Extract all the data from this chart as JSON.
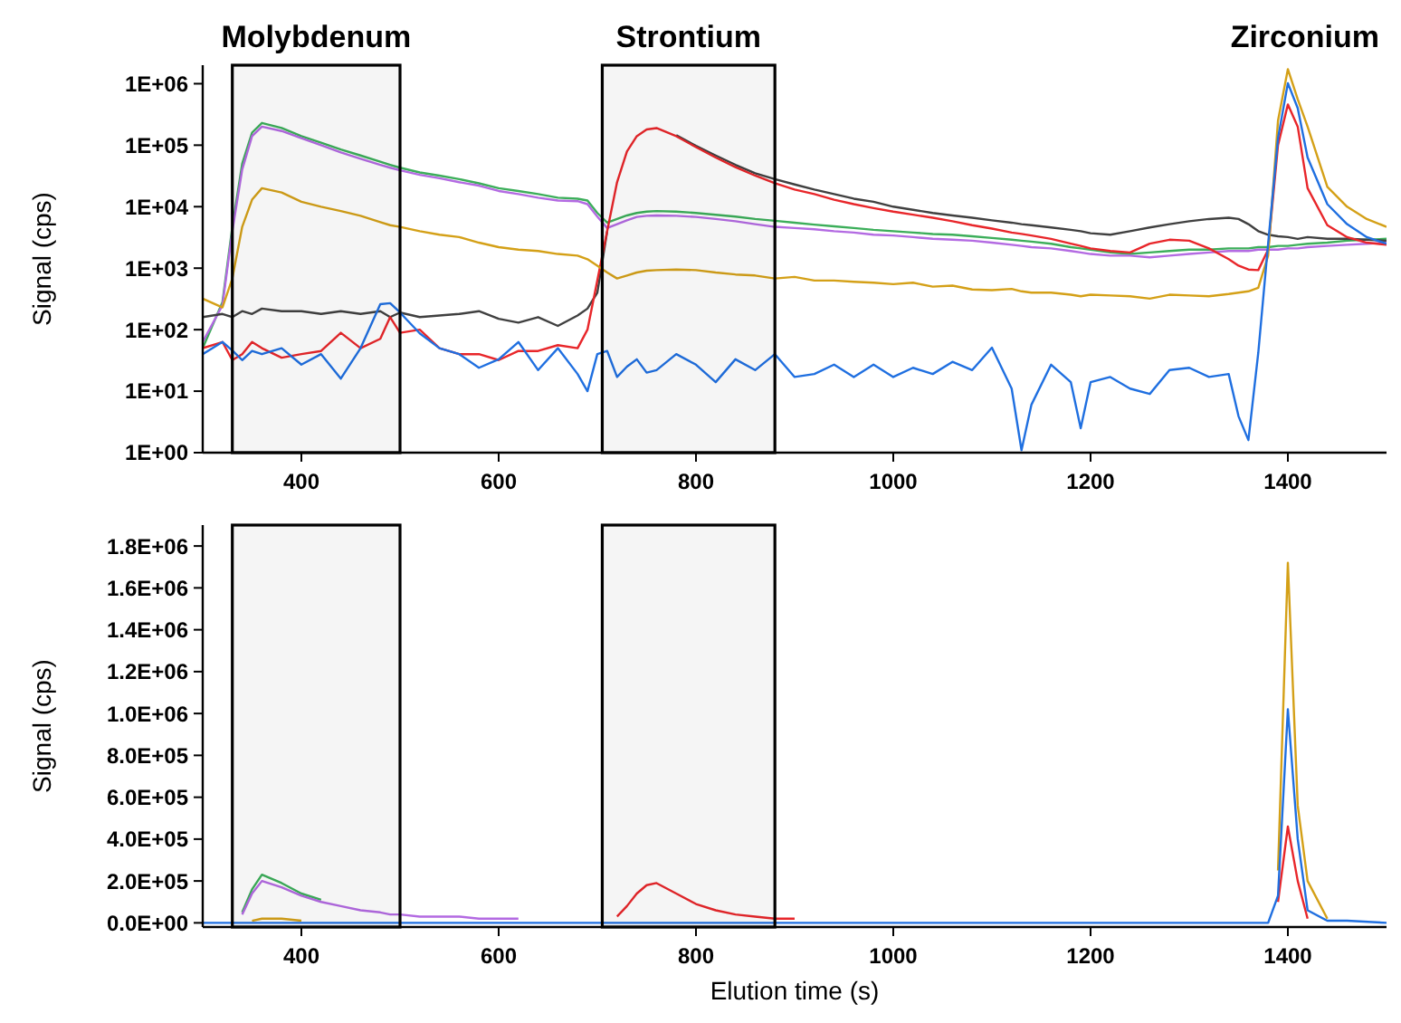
{
  "chart_data": [
    {
      "type": "line",
      "ylabel": "Signal (cps)",
      "log": true,
      "xlim": [
        300,
        1500
      ],
      "xticks": [
        400,
        600,
        800,
        1000,
        1200,
        1400
      ],
      "ylim": [
        1,
        2000000
      ],
      "yticks": [
        {
          "value": 1,
          "label": "1E+00"
        },
        {
          "value": 10,
          "label": "1E+01"
        },
        {
          "value": 100,
          "label": "1E+02"
        },
        {
          "value": 1000,
          "label": "1E+03"
        },
        {
          "value": 10000,
          "label": "1E+04"
        },
        {
          "value": 100000,
          "label": "1E+05"
        },
        {
          "value": 1000000,
          "label": "1E+06"
        }
      ],
      "bands": [
        {
          "axis": "x",
          "from": 330,
          "to": 500,
          "label": "Molybdenum"
        },
        {
          "axis": "x",
          "from": 705,
          "to": 880,
          "label": "Strontium"
        }
      ],
      "annotations": [
        "Zirconium"
      ],
      "x": [
        300,
        320,
        330,
        340,
        350,
        360,
        380,
        400,
        420,
        440,
        460,
        480,
        490,
        500,
        520,
        540,
        560,
        580,
        600,
        620,
        640,
        660,
        680,
        690,
        700,
        710,
        720,
        730,
        740,
        750,
        760,
        780,
        800,
        820,
        840,
        860,
        880,
        900,
        920,
        940,
        960,
        980,
        1000,
        1020,
        1040,
        1060,
        1080,
        1100,
        1120,
        1130,
        1140,
        1160,
        1180,
        1190,
        1200,
        1220,
        1240,
        1260,
        1280,
        1300,
        1320,
        1340,
        1350,
        1360,
        1370,
        1380,
        1390,
        1400,
        1410,
        1420,
        1440,
        1460,
        1480,
        1500
      ],
      "series": [
        {
          "color": "#3cae5a",
          "values": [
            50,
            280,
            4700,
            50000,
            160000,
            230000,
            190000,
            140000,
            110000,
            85000,
            68000,
            54000,
            48000,
            43000,
            36000,
            32000,
            28000,
            24000,
            20000,
            18000,
            16000,
            14000,
            13500,
            12600,
            7900,
            5500,
            6300,
            7200,
            7900,
            8300,
            8500,
            8300,
            7900,
            7400,
            6900,
            6300,
            5900,
            5500,
            5100,
            4800,
            4500,
            4200,
            4000,
            3800,
            3600,
            3500,
            3300,
            3100,
            2900,
            2800,
            2700,
            2500,
            2200,
            2100,
            2000,
            1800,
            1700,
            1800,
            1900,
            2000,
            2000,
            2100,
            2100,
            2100,
            2200,
            2200,
            2300,
            2300,
            2400,
            2500,
            2600,
            2800,
            2900,
            3000
          ]
        },
        {
          "color": "#b36ae2",
          "values": [
            63,
            250,
            4000,
            40000,
            140000,
            200000,
            170000,
            130000,
            100000,
            76000,
            60000,
            48000,
            43000,
            39000,
            33000,
            29000,
            25000,
            22000,
            18000,
            16000,
            14000,
            12600,
            12300,
            11000,
            6900,
            4500,
            5200,
            6000,
            6800,
            7100,
            7200,
            7100,
            6800,
            6300,
            5800,
            5200,
            4700,
            4500,
            4300,
            4000,
            3800,
            3500,
            3400,
            3200,
            3000,
            2900,
            2800,
            2600,
            2400,
            2300,
            2200,
            2100,
            1900,
            1800,
            1700,
            1600,
            1600,
            1500,
            1600,
            1700,
            1800,
            1900,
            1900,
            1900,
            2000,
            2000,
            2000,
            2100,
            2100,
            2200,
            2300,
            2400,
            2500,
            2600
          ]
        },
        {
          "color": "#404040",
          "values": [
            160,
            180,
            160,
            200,
            180,
            220,
            200,
            200,
            180,
            200,
            180,
            200,
            160,
            190,
            160,
            170,
            180,
            200,
            150,
            130,
            160,
            115,
            170,
            220,
            400,
            4000,
            null,
            null,
            null,
            null,
            null,
            145000,
            98000,
            68000,
            48000,
            35000,
            28000,
            23000,
            19000,
            16000,
            13500,
            12000,
            10000,
            8900,
            7900,
            7200,
            6600,
            6000,
            5500,
            5200,
            5000,
            4600,
            4200,
            4000,
            3700,
            3500,
            4000,
            4600,
            5200,
            5800,
            6300,
            6600,
            6300,
            5200,
            4000,
            3500,
            3300,
            3200,
            3000,
            3200,
            3000,
            3000,
            2900,
            2800
          ]
        },
        {
          "color": "#e8262a",
          "values": [
            50,
            63,
            32,
            40,
            63,
            50,
            35,
            40,
            45,
            89,
            50,
            71,
            160,
            89,
            100,
            50,
            40,
            40,
            32,
            45,
            45,
            56,
            50,
            100,
            630,
            4000,
            25000,
            79000,
            140000,
            180000,
            190000,
            140000,
            93000,
            63000,
            44000,
            32000,
            24000,
            19000,
            16000,
            13000,
            11000,
            9500,
            8300,
            7400,
            6600,
            5800,
            5000,
            4400,
            3800,
            3600,
            3400,
            3000,
            2500,
            2300,
            2100,
            1900,
            1800,
            2500,
            2900,
            2800,
            2100,
            1400,
            1100,
            950,
            930,
            2000,
            100000,
            460000,
            200000,
            20000,
            5000,
            3200,
            2600,
            2400
          ]
        },
        {
          "color": "#d4a017",
          "values": [
            320,
            230,
            680,
            4700,
            13000,
            20000,
            17000,
            12000,
            10000,
            8500,
            7100,
            5600,
            5000,
            4700,
            4000,
            3500,
            3200,
            2600,
            2200,
            2000,
            1900,
            1700,
            1600,
            1400,
            1100,
            850,
            680,
            760,
            850,
            910,
            930,
            950,
            930,
            850,
            790,
            760,
            680,
            720,
            630,
            630,
            600,
            580,
            550,
            580,
            500,
            520,
            450,
            440,
            460,
            420,
            400,
            400,
            370,
            350,
            370,
            360,
            350,
            320,
            370,
            360,
            350,
            380,
            400,
            420,
            480,
            1600,
            250000,
            1720000,
            560000,
            200000,
            21000,
            10000,
            6300,
            4700
          ]
        },
        {
          "color": "#1f6fe0",
          "values": [
            40,
            63,
            46,
            32,
            45,
            40,
            50,
            27,
            40,
            16,
            50,
            260,
            270,
            190,
            87,
            50,
            40,
            24,
            33,
            63,
            22,
            50,
            19,
            10,
            40,
            45,
            17,
            25,
            33,
            20,
            22,
            40,
            27,
            14,
            33,
            22,
            40,
            17,
            19,
            27,
            17,
            27,
            17,
            24,
            19,
            30,
            22,
            51,
            11,
            1.1,
            6,
            27,
            14,
            2.5,
            14,
            17,
            11,
            9,
            22,
            24,
            17,
            19,
            3.9,
            1.6,
            42,
            2500,
            130000,
            1020000,
            400000,
            63000,
            11000,
            5200,
            3200,
            2500
          ]
        }
      ]
    },
    {
      "type": "line",
      "xlabel": "Elution time (s)",
      "ylabel": "Signal (cps)",
      "xlim": [
        300,
        1500
      ],
      "xticks": [
        400,
        600,
        800,
        1000,
        1200,
        1400
      ],
      "ylim": [
        -20000,
        1900000
      ],
      "yticks": [
        {
          "value": 0,
          "label": "0.0E+00"
        },
        {
          "value": 200000,
          "label": "2.0E+05"
        },
        {
          "value": 400000,
          "label": "4.0E+05"
        },
        {
          "value": 600000,
          "label": "6.0E+05"
        },
        {
          "value": 800000,
          "label": "8.0E+05"
        },
        {
          "value": 1000000,
          "label": "1.0E+06"
        },
        {
          "value": 1200000,
          "label": "1.2E+06"
        },
        {
          "value": 1400000,
          "label": "1.4E+06"
        },
        {
          "value": 1600000,
          "label": "1.6E+06"
        },
        {
          "value": 1800000,
          "label": "1.8E+06"
        }
      ],
      "bands": [
        {
          "axis": "x",
          "from": 330,
          "to": 500
        },
        {
          "axis": "x",
          "from": 705,
          "to": 880
        }
      ],
      "series": [
        {
          "color": "#3cae5a",
          "x": [
            340,
            350,
            360,
            380,
            400,
            420
          ],
          "values": [
            50000,
            160000,
            230000,
            190000,
            140000,
            110000
          ]
        },
        {
          "color": "#b36ae2",
          "x": [
            340,
            350,
            360,
            380,
            400,
            420,
            440,
            460,
            480,
            490,
            500,
            520,
            540,
            560,
            580,
            600,
            620
          ],
          "values": [
            40000,
            140000,
            200000,
            170000,
            130000,
            100000,
            80000,
            60000,
            50000,
            40000,
            40000,
            30000,
            30000,
            30000,
            20000,
            20000,
            20000
          ]
        },
        {
          "color": "#e8262a",
          "x": [
            720,
            730,
            740,
            750,
            760,
            780,
            800,
            820,
            840,
            860,
            880,
            900,
            1380,
            1390,
            1400,
            1410,
            1420
          ],
          "values": [
            30000,
            80000,
            140000,
            180000,
            190000,
            140000,
            90000,
            60000,
            40000,
            30000,
            20000,
            20000,
            null,
            100000,
            460000,
            200000,
            20000
          ]
        },
        {
          "color": "#d4a017",
          "x": [
            350,
            360,
            380,
            400,
            1380,
            1390,
            1400,
            1410,
            1420,
            1440
          ],
          "values": [
            10000,
            20000,
            20000,
            10000,
            null,
            250000,
            1720000,
            560000,
            200000,
            20000
          ]
        },
        {
          "color": "#1f6fe0",
          "x": [
            300,
            1380,
            1390,
            1400,
            1410,
            1420,
            1440,
            1460,
            1500
          ],
          "values": [
            0,
            0,
            130000,
            1020000,
            400000,
            60000,
            10000,
            10000,
            0
          ]
        }
      ]
    }
  ]
}
